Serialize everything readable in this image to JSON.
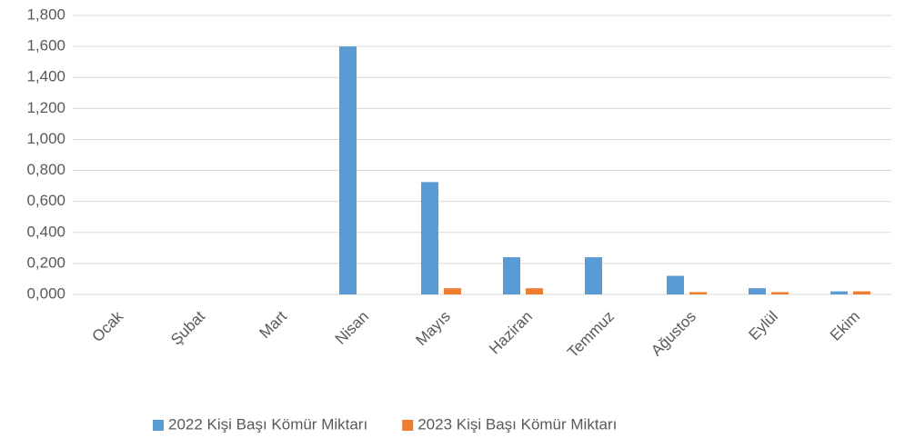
{
  "chart_data": {
    "type": "bar",
    "categories": [
      "Ocak",
      "Şubat",
      "Mart",
      "Nisan",
      "Mayıs",
      "Haziran",
      "Temmuz",
      "Ağustos",
      "Eylül",
      "Ekim"
    ],
    "series": [
      {
        "name": "2022 Kişi Başı Kömür Miktarı",
        "color": "#5b9bd5",
        "values": [
          0,
          0,
          0,
          1.6,
          0.725,
          0.24,
          0.24,
          0.12,
          0.04,
          0.02
        ]
      },
      {
        "name": "2023 Kişi Başı Kömür Miktarı",
        "color": "#ed7d31",
        "values": [
          0,
          0,
          0,
          0,
          0.04,
          0.04,
          0,
          0.015,
          0.015,
          0.02
        ]
      }
    ],
    "ylim": [
      0,
      1.8
    ],
    "yticks": [
      {
        "value": 0,
        "label": "0,000"
      },
      {
        "value": 0.2,
        "label": "0,200"
      },
      {
        "value": 0.4,
        "label": "0,400"
      },
      {
        "value": 0.6,
        "label": "0,600"
      },
      {
        "value": 0.8,
        "label": "0,800"
      },
      {
        "value": 1.0,
        "label": "1,000"
      },
      {
        "value": 1.2,
        "label": "1,200"
      },
      {
        "value": 1.4,
        "label": "1,400"
      },
      {
        "value": 1.6,
        "label": "1,600"
      },
      {
        "value": 1.8,
        "label": "1,800"
      }
    ],
    "grid": true,
    "legend": "bottom"
  }
}
